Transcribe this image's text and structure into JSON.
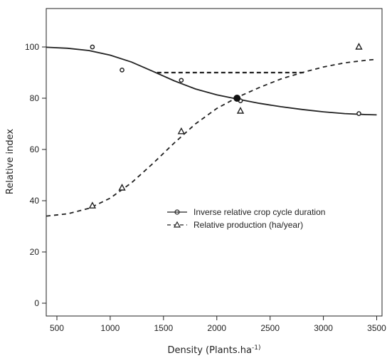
{
  "chart_data": {
    "type": "line",
    "title": "",
    "xlabel": "Density (Plants.ha",
    "xlabel_sup": "-1)",
    "ylabel": "Relative index",
    "xlim": [
      400,
      3550
    ],
    "ylim": [
      -5,
      115
    ],
    "x_ticks": [
      "500",
      "1000",
      "1500",
      "2000",
      "2500",
      "3000",
      "3500"
    ],
    "y_ticks": [
      "0",
      "20",
      "40",
      "60",
      "80",
      "100"
    ],
    "grid": false,
    "legend_position": "center-right",
    "series": [
      {
        "name": "Inverse relative crop cycle duration",
        "line_style": "solid",
        "marker": "circle",
        "points": [
          [
            833,
            100
          ],
          [
            1111,
            91
          ],
          [
            1667,
            87
          ],
          [
            2222,
            79
          ],
          [
            3333,
            74
          ]
        ],
        "curve": [
          [
            400,
            99.9
          ],
          [
            600,
            99.5
          ],
          [
            800,
            98.6
          ],
          [
            1000,
            96.8
          ],
          [
            1200,
            94.1
          ],
          [
            1400,
            90.5
          ],
          [
            1600,
            86.8
          ],
          [
            1800,
            83.6
          ],
          [
            2000,
            81.3
          ],
          [
            2200,
            79.6
          ],
          [
            2400,
            78
          ],
          [
            2600,
            76.7
          ],
          [
            2800,
            75.6
          ],
          [
            3000,
            74.7
          ],
          [
            3200,
            74
          ],
          [
            3400,
            73.6
          ],
          [
            3500,
            73.5
          ]
        ]
      },
      {
        "name": "Relative production (ha/year)",
        "line_style": "dashed",
        "marker": "triangle",
        "points": [
          [
            833,
            38
          ],
          [
            1111,
            45
          ],
          [
            1667,
            67
          ],
          [
            2222,
            75
          ],
          [
            3333,
            100
          ]
        ],
        "curve": [
          [
            400,
            34
          ],
          [
            600,
            34.9
          ],
          [
            800,
            37
          ],
          [
            1000,
            41
          ],
          [
            1200,
            47
          ],
          [
            1400,
            54.5
          ],
          [
            1600,
            62.5
          ],
          [
            1800,
            70
          ],
          [
            2000,
            76
          ],
          [
            2200,
            80.5
          ],
          [
            2400,
            84.2
          ],
          [
            2600,
            87.5
          ],
          [
            2800,
            90
          ],
          [
            3000,
            92.2
          ],
          [
            3200,
            93.8
          ],
          [
            3400,
            94.8
          ],
          [
            3500,
            95.2
          ]
        ]
      }
    ],
    "annotations": {
      "intersection": {
        "x": 2190,
        "y": 80
      },
      "reference_segment": {
        "x_start": 1440,
        "x_end": 2820,
        "y": 90
      }
    }
  }
}
